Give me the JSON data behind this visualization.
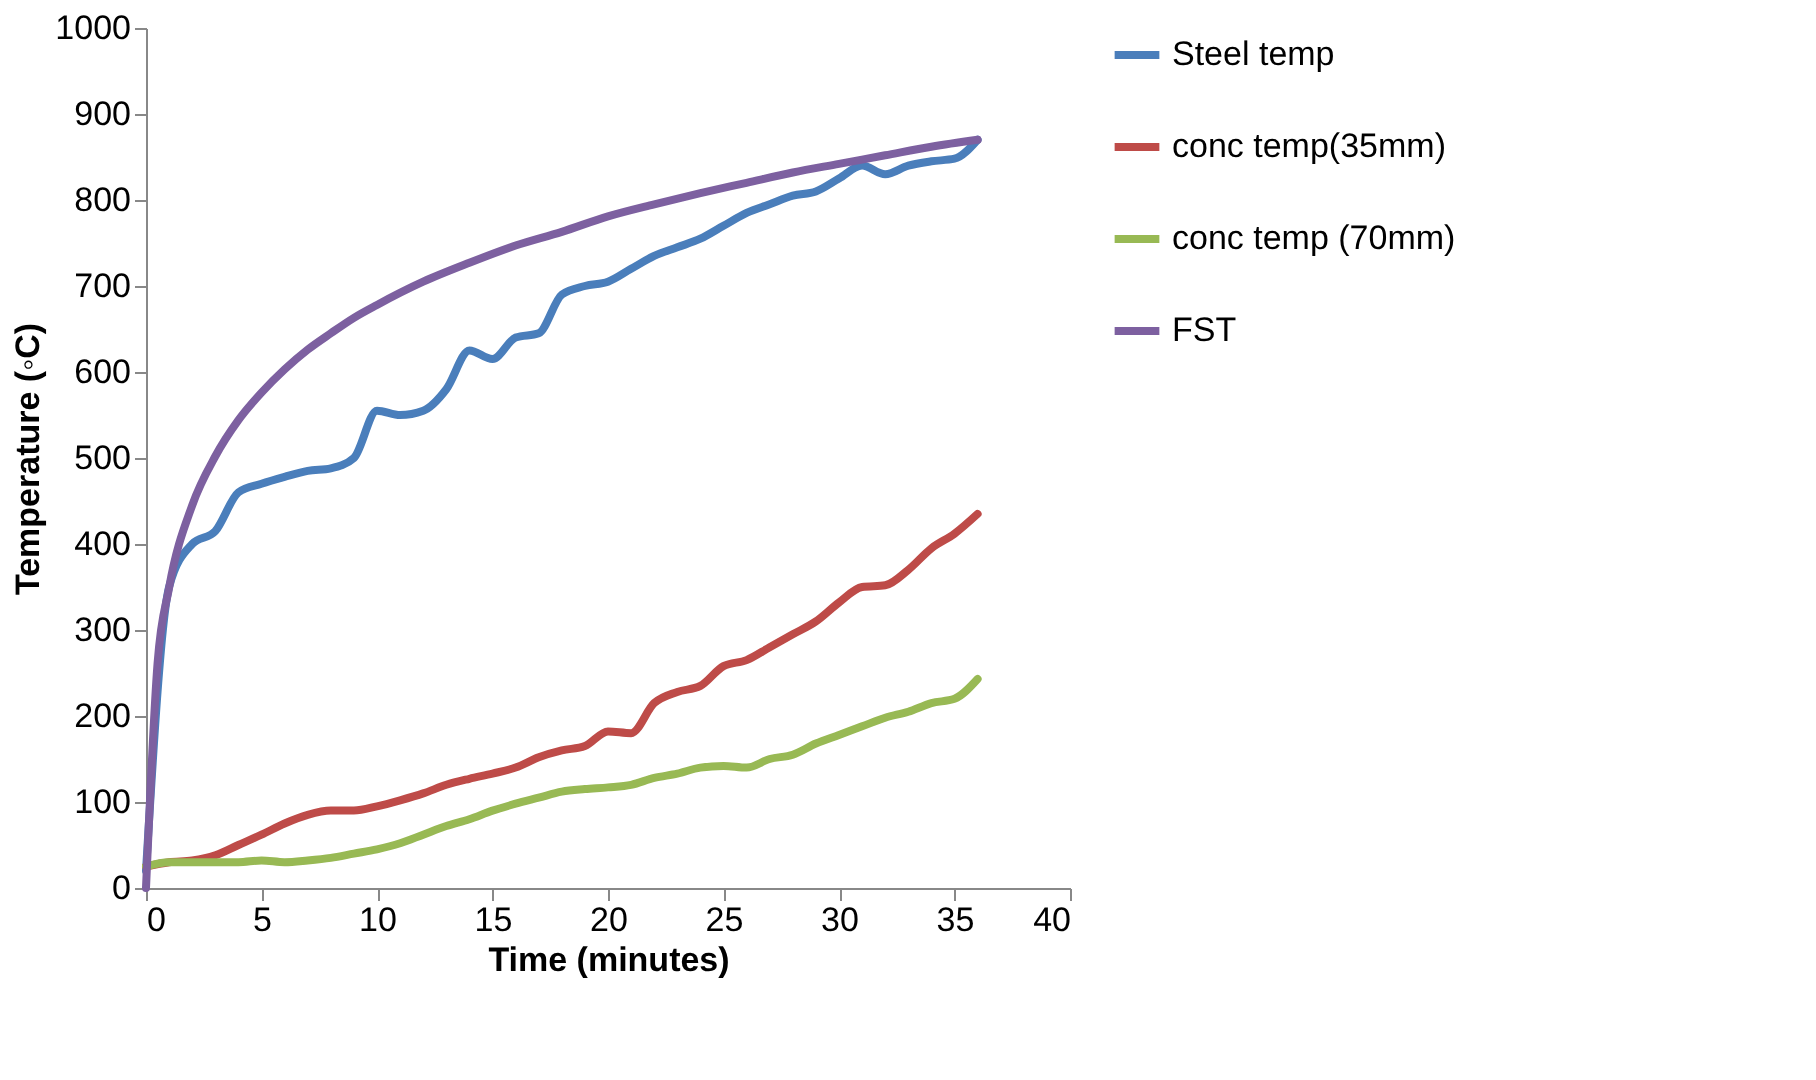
{
  "chart_data": {
    "type": "line",
    "xlabel": "Time (minutes)",
    "ylabel": "Temperature (◦C)",
    "xlim": [
      0,
      40
    ],
    "xticks": [
      0,
      5,
      10,
      15,
      20,
      25,
      30,
      35,
      40
    ],
    "ylim": [
      0,
      1000
    ],
    "yticks": [
      0,
      100,
      200,
      300,
      400,
      500,
      600,
      700,
      800,
      900,
      1000
    ],
    "grid": false,
    "legend": "right",
    "marker": "none",
    "line_style": "solid",
    "x": [
      0,
      1,
      2,
      3,
      4,
      5,
      6,
      7,
      8,
      9,
      10,
      11,
      12,
      13,
      14,
      15,
      16,
      17,
      18,
      19,
      20,
      21,
      22,
      23,
      24,
      25,
      26,
      27,
      28,
      29,
      30,
      31,
      32,
      33,
      34,
      35,
      36
    ],
    "series": [
      {
        "name": "Steel temp",
        "color": "#4a7ebb",
        "values": [
          20,
          350,
          400,
          415,
          460,
          470,
          478,
          485,
          488,
          500,
          555,
          550,
          555,
          580,
          625,
          615,
          640,
          645,
          690,
          700,
          705,
          720,
          735,
          745,
          755,
          770,
          785,
          795,
          805,
          810,
          825,
          840,
          830,
          840,
          845,
          848,
          870
        ]
      },
      {
        "name": "conc temp(35mm)",
        "color": "#be4b48",
        "values": [
          25,
          30,
          32,
          38,
          50,
          62,
          75,
          85,
          90,
          90,
          95,
          102,
          110,
          120,
          127,
          133,
          140,
          152,
          160,
          165,
          182,
          180,
          215,
          228,
          235,
          258,
          265,
          280,
          295,
          310,
          332,
          350,
          352,
          370,
          395,
          412,
          435
        ]
      },
      {
        "name": "conc temp (70mm)",
        "color": "#98b954",
        "values": [
          25,
          30,
          30,
          30,
          30,
          32,
          30,
          32,
          35,
          40,
          45,
          52,
          62,
          72,
          80,
          90,
          98,
          105,
          112,
          115,
          117,
          120,
          128,
          133,
          140,
          142,
          140,
          150,
          155,
          168,
          178,
          188,
          198,
          205,
          215,
          220,
          243
        ]
      },
      {
        "name": "FST",
        "color": "#7d60a0",
        "x": [
          0,
          0.5,
          1,
          2,
          3,
          4,
          5,
          6,
          7,
          8,
          9,
          10,
          12,
          14,
          16,
          18,
          20,
          22,
          24,
          26,
          28,
          30,
          32,
          34,
          36
        ],
        "values": [
          0,
          261,
          349,
          445,
          502,
          544,
          576,
          603,
          626,
          645,
          663,
          678,
          705,
          727,
          747,
          763,
          781,
          795,
          808,
          820,
          832,
          842,
          852,
          862,
          870
        ]
      }
    ]
  }
}
